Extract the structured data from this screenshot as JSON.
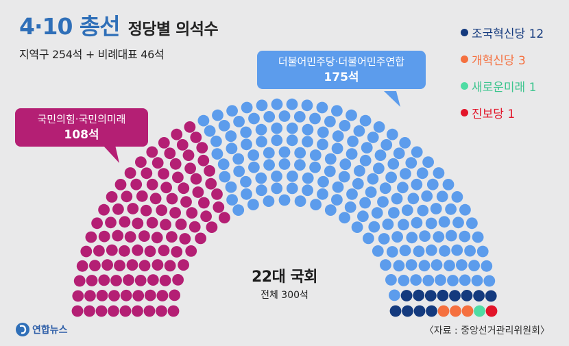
{
  "header": {
    "title_main": "4·10 총선",
    "title_sub": "정당별 의석수",
    "subtitle": "지역구 254석 + 비례대표 46석"
  },
  "callouts": {
    "dp_name": "더불어민주당·더불어민주연합",
    "dp_seats": "175석",
    "ppp_name": "국민의힘·국민의미래",
    "ppp_seats": "108석"
  },
  "legend": [
    {
      "label": "조국혁신당 12",
      "color": "#143a7e"
    },
    {
      "label": "개혁신당 3",
      "color": "#f5703f"
    },
    {
      "label": "새로운미래 1",
      "color": "#4fdca4"
    },
    {
      "label": "진보당 1",
      "color": "#e2152a"
    }
  ],
  "center": {
    "title": "22대 국회",
    "subtitle": "전체 300석"
  },
  "footer": {
    "logo_text": "연합뉴스",
    "source": "〈자료 : 중앙선거관리위원회〉"
  },
  "chart_data": {
    "type": "parliament",
    "total": 300,
    "series": [
      {
        "name": "국민의힘·국민의미래",
        "value": 108,
        "color": "#b41f74"
      },
      {
        "name": "더불어민주당·더불어민주연합",
        "value": 175,
        "color": "#5c9cec"
      },
      {
        "name": "조국혁신당",
        "value": 12,
        "color": "#143a7e"
      },
      {
        "name": "개혁신당",
        "value": 3,
        "color": "#f5703f"
      },
      {
        "name": "새로운미래",
        "value": 1,
        "color": "#4fdca4"
      },
      {
        "name": "진보당",
        "value": 1,
        "color": "#e2152a"
      }
    ]
  }
}
